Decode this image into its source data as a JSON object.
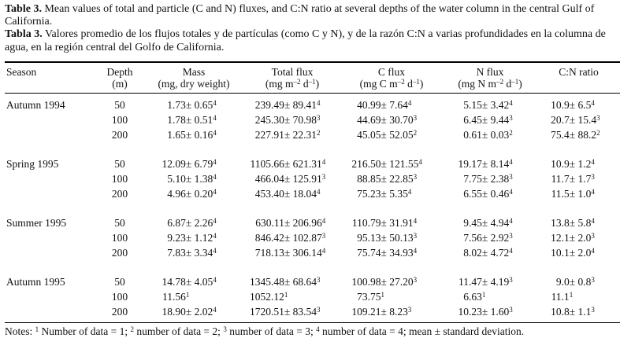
{
  "caption": {
    "en_label": "Table 3.",
    "en_text": "Mean values of total and particle (C and N) fluxes, and C:N ratio at several depths of the water column in the central Gulf of California.",
    "es_label": "Tabla 3.",
    "es_text": "Valores promedio de los flujos totales y de partículas (como C y N), y de la razón C:N a varias profundidades en la columna de agua, en la región central del Golfo de California."
  },
  "table": {
    "columns": [
      {
        "label": "Season",
        "unit": ""
      },
      {
        "label": "Depth",
        "unit": "(m)"
      },
      {
        "label": "Mass",
        "unit": "(mg, dry weight)"
      },
      {
        "label": "Total flux",
        "unit": "(mg m^{–2} d^{–1})"
      },
      {
        "label": "C flux",
        "unit": "(mg C m^{–2} d^{–1})"
      },
      {
        "label": "N flux",
        "unit": "(mg N m^{–2} d^{–1})"
      },
      {
        "label": "C:N ratio",
        "unit": ""
      }
    ],
    "groups": [
      {
        "season": "Autumn 1994",
        "rows": [
          {
            "depth": "50",
            "values": [
              "1.73 ± 0.65^{4}",
              "239.49 ± 89.41^{4}",
              "40.99 ± 7.64^{4}",
              "5.15 ± 3.42^{4}",
              "10.9 ± 6.5^{4}"
            ]
          },
          {
            "depth": "100",
            "values": [
              "1.78 ± 0.51^{4}",
              "245.30 ± 70.98^{3}",
              "44.69 ± 30.70^{3}",
              "6.45 ± 9.44^{3}",
              "20.7 ± 15.4^{3}"
            ]
          },
          {
            "depth": "200",
            "values": [
              "1.65 ± 0.16^{4}",
              "227.91 ± 22.31^{2}",
              "45.05 ± 52.05^{2}",
              "0.61 ± 0.03^{2}",
              "75.4 ± 88.2^{2}"
            ]
          }
        ]
      },
      {
        "season": "Spring 1995",
        "rows": [
          {
            "depth": "50",
            "values": [
              "12.09 ± 6.79^{4}",
              "1105.66 ± 621.31^{4}",
              "216.50 ± 121.55^{4}",
              "19.17 ± 8.14^{4}",
              "10.9 ± 1.2^{4}"
            ]
          },
          {
            "depth": "100",
            "values": [
              "5.10 ± 1.38^{4}",
              "466.04 ± 125.91^{3}",
              "88.85 ± 22.85^{3}",
              "7.75 ± 2.38^{3}",
              "11.7 ± 1.7^{3}"
            ]
          },
          {
            "depth": "200",
            "values": [
              "4.96 ± 0.20^{4}",
              "453.40 ± 18.04^{4}",
              "75.23 ± 5.35^{4}",
              "6.55 ± 0.46^{4}",
              "11.5 ± 1.0^{4}"
            ]
          }
        ]
      },
      {
        "season": "Summer 1995",
        "rows": [
          {
            "depth": "50",
            "values": [
              "6.87 ± 2.26^{4}",
              "630.11 ± 206.96^{4}",
              "110.79 ± 31.91^{4}",
              "9.45 ± 4.94^{4}",
              "13.8 ± 5.8^{4}"
            ]
          },
          {
            "depth": "100",
            "values": [
              "9.23 ± 1.12^{4}",
              "846.42 ± 102.87^{3}",
              "95.13 ± 50.13^{3}",
              "7.56 ± 2.92^{3}",
              "12.1 ± 2.0^{3}"
            ]
          },
          {
            "depth": "200",
            "values": [
              "7.83 ± 3.34^{4}",
              "718.13 ± 306.14^{4}",
              "75.74 ± 34.93^{4}",
              "8.02 ± 4.72^{4}",
              "10.1 ± 2.0^{4}"
            ]
          }
        ]
      },
      {
        "season": "Autumn 1995",
        "rows": [
          {
            "depth": "50",
            "values": [
              "14.78 ± 4.05^{4}",
              "1345.48 ± 68.64^{3}",
              "100.98 ± 27.20^{3}",
              "11.47 ± 4.19^{3}",
              "9.0 ± 0.8^{3}"
            ]
          },
          {
            "depth": "100",
            "values": [
              "11.56^{1}",
              "1052.12^{1}",
              "73.75^{1}",
              "6.63^{1}",
              "11.1^{1}"
            ]
          },
          {
            "depth": "200",
            "values": [
              "18.90 ± 2.02^{4}",
              "1720.51 ± 83.54^{3}",
              "109.21 ± 8.23^{3}",
              "10.23 ± 1.60^{3}",
              "10.8 ± 1.1^{3}"
            ]
          }
        ]
      }
    ]
  },
  "notes": "Notes: ^{1} Number of data = 1; ^{2} number of data = 2; ^{3} number of data = 3; ^{4} number of data = 4;  mean ± standard deviation."
}
